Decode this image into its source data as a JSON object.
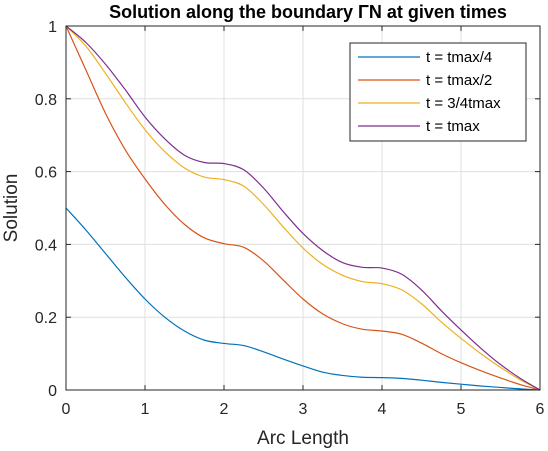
{
  "chart_data": {
    "type": "line",
    "title": "Solution along the boundary  ΓN at given times",
    "xlabel": "Arc Length",
    "ylabel": "Solution",
    "xlim": [
      0,
      6
    ],
    "ylim": [
      0,
      1
    ],
    "xticks": [
      0,
      1,
      2,
      3,
      4,
      5,
      6
    ],
    "yticks": [
      0,
      0.2,
      0.4,
      0.6,
      0.8,
      1
    ],
    "ytick_labels": [
      "0",
      "0.2",
      "0.4",
      "0.6",
      "0.8",
      "1"
    ],
    "grid": true,
    "legend_position": "top-right",
    "x": [
      0,
      0.25,
      0.5,
      0.75,
      1,
      1.25,
      1.5,
      1.75,
      2,
      2.25,
      2.5,
      2.75,
      3,
      3.25,
      3.5,
      3.75,
      4,
      4.25,
      4.5,
      4.75,
      5,
      5.25,
      5.5,
      5.75,
      6
    ],
    "series": [
      {
        "name": "t = tmax/4",
        "color": "#0072BD",
        "values": [
          0.5,
          0.44,
          0.375,
          0.31,
          0.25,
          0.2,
          0.162,
          0.137,
          0.128,
          0.122,
          0.105,
          0.085,
          0.066,
          0.049,
          0.04,
          0.035,
          0.034,
          0.032,
          0.027,
          0.021,
          0.016,
          0.011,
          0.007,
          0.003,
          0.0
        ]
      },
      {
        "name": "t = tmax/2",
        "color": "#D95319",
        "values": [
          1.0,
          0.88,
          0.76,
          0.66,
          0.58,
          0.51,
          0.455,
          0.418,
          0.402,
          0.392,
          0.355,
          0.302,
          0.25,
          0.209,
          0.182,
          0.167,
          0.162,
          0.153,
          0.129,
          0.1,
          0.075,
          0.053,
          0.033,
          0.015,
          0.0
        ]
      },
      {
        "name": "t = 3/4tmax",
        "color": "#EDB120",
        "values": [
          1.0,
          0.945,
          0.87,
          0.79,
          0.715,
          0.655,
          0.61,
          0.585,
          0.578,
          0.56,
          0.51,
          0.448,
          0.39,
          0.345,
          0.315,
          0.298,
          0.292,
          0.275,
          0.237,
          0.187,
          0.142,
          0.1,
          0.062,
          0.028,
          0.0
        ]
      },
      {
        "name": "t = tmax",
        "color": "#7E2F8E",
        "values": [
          1.0,
          0.955,
          0.895,
          0.825,
          0.75,
          0.69,
          0.645,
          0.625,
          0.622,
          0.605,
          0.555,
          0.49,
          0.43,
          0.383,
          0.35,
          0.337,
          0.335,
          0.318,
          0.275,
          0.218,
          0.165,
          0.115,
          0.07,
          0.032,
          0.0
        ]
      }
    ]
  }
}
